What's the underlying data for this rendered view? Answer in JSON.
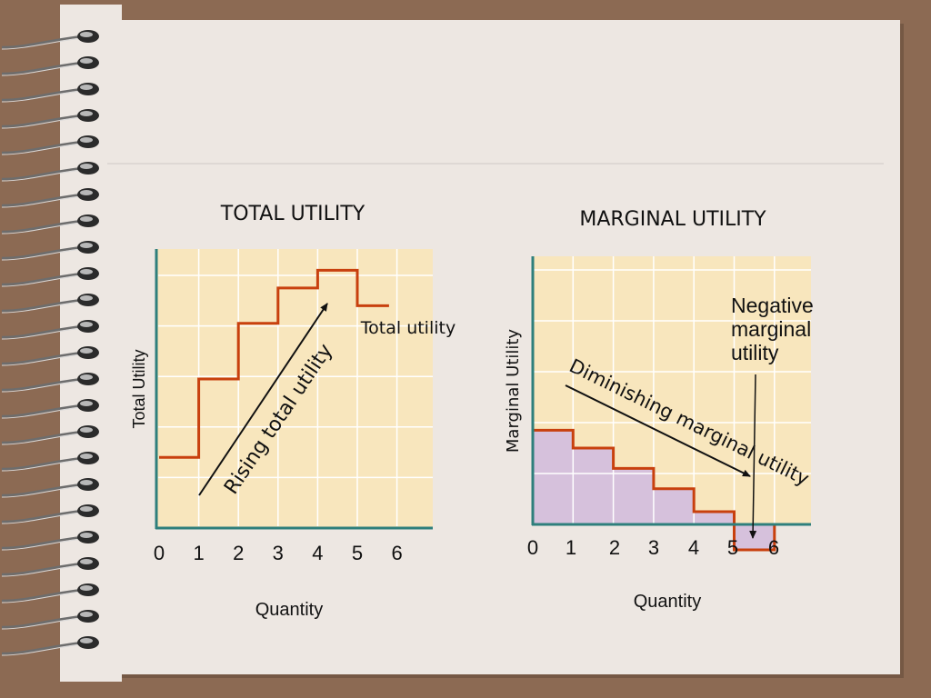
{
  "chart_data": [
    {
      "type": "line",
      "title": "TOTAL UTILITY",
      "xlabel": "Quantity",
      "ylabel": "Total Utility",
      "x_ticks": [
        "0",
        "1",
        "2",
        "3",
        "4",
        "5",
        "6"
      ],
      "grid": true,
      "series": [
        {
          "name": "Total utility",
          "shape": "step",
          "points": [
            [
              0,
              1.4
            ],
            [
              1,
              1.4
            ],
            [
              1,
              2.95
            ],
            [
              2,
              2.95
            ],
            [
              2,
              4.05
            ],
            [
              3,
              4.05
            ],
            [
              3,
              4.75
            ],
            [
              4,
              4.75
            ],
            [
              4,
              5.1
            ],
            [
              5,
              5.1
            ],
            [
              5,
              4.4
            ],
            [
              5.8,
              4.4
            ]
          ]
        }
      ],
      "annotations": [
        {
          "id": "rising",
          "text": "Rising total utility"
        },
        {
          "id": "total",
          "text": "Total utility"
        }
      ],
      "colors": {
        "plot_bg": "#f8e6bd",
        "line": "#c8400e",
        "axis": "#2e7f7c",
        "grid": "#ffffff"
      }
    },
    {
      "type": "bar",
      "title": "MARGINAL UTILITY",
      "xlabel": "Quantity",
      "ylabel": "Marginal Utility",
      "x_ticks": [
        "0",
        "1",
        "2",
        "3",
        "4",
        "5",
        "6"
      ],
      "grid": true,
      "categories": [
        "1",
        "2",
        "3",
        "4",
        "5",
        "6"
      ],
      "values": [
        1.85,
        1.5,
        1.1,
        0.7,
        0.25,
        -0.5
      ],
      "annotations": [
        {
          "id": "diminishing",
          "text": "Diminishing marginal utility"
        },
        {
          "id": "negative",
          "text": "Negative marginal utility"
        }
      ],
      "colors": {
        "plot_bg": "#f8e6bd",
        "fill": "#d6c1dc",
        "line": "#c8400e",
        "axis": "#2e7f7c",
        "grid": "#ffffff"
      }
    }
  ]
}
